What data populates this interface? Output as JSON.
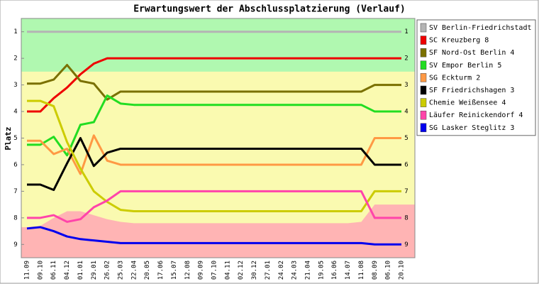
{
  "chart_data": {
    "type": "line",
    "title": "Erwartungswert der Abschlussplatzierung (Verlauf)",
    "y_label": "Platz",
    "categories": [
      "11.09",
      "09.10",
      "06.11",
      "04.12",
      "01.01",
      "29.01",
      "26.02",
      "25.03",
      "22.04",
      "20.05",
      "17.06",
      "15.07",
      "12.08",
      "09.09",
      "07.10",
      "04.11",
      "02.12",
      "30.12",
      "27.01",
      "24.02",
      "24.03",
      "21.04",
      "19.05",
      "16.06",
      "14.07",
      "11.08",
      "08.09",
      "06.10",
      "20.10"
    ],
    "ylim": [
      9.5,
      0.5
    ],
    "yticks": [
      1,
      2,
      3,
      4,
      5,
      6,
      7,
      8,
      9
    ],
    "legend": "right",
    "zones": {
      "promotion_color": "#b0f8b0",
      "middle_color": "#fafab0",
      "relegation_color": "#ffb4b4",
      "promotion_edge": 2.5,
      "relegation_edge": [
        8.35,
        8.3,
        8.0,
        7.75,
        7.75,
        7.9,
        8.05,
        8.15,
        8.2,
        8.2,
        8.2,
        8.2,
        8.2,
        8.2,
        8.2,
        8.2,
        8.2,
        8.2,
        8.2,
        8.2,
        8.2,
        8.2,
        8.2,
        8.2,
        8.2,
        8.15,
        7.5,
        7.5,
        7.5
      ]
    },
    "series": [
      {
        "name": "SV Berlin-Friedrichstadt",
        "color": "#b4b4b4",
        "values": [
          1,
          1,
          1,
          1,
          1,
          1,
          1,
          1,
          1,
          1,
          1,
          1,
          1,
          1,
          1,
          1,
          1,
          1,
          1,
          1,
          1,
          1,
          1,
          1,
          1,
          1,
          1,
          1,
          1
        ]
      },
      {
        "name": "SC Kreuzberg 8",
        "color": "#ee0000",
        "values": [
          4.0,
          4.0,
          3.5,
          3.1,
          2.6,
          2.2,
          2,
          2,
          2,
          2,
          2,
          2,
          2,
          2,
          2,
          2,
          2,
          2,
          2,
          2,
          2,
          2,
          2,
          2,
          2,
          2,
          2,
          2,
          2
        ]
      },
      {
        "name": "SF Nord-Ost Berlin 4",
        "color": "#7a7000",
        "values": [
          2.95,
          2.95,
          2.8,
          2.25,
          2.85,
          2.95,
          3.55,
          3.25,
          3.25,
          3.25,
          3.25,
          3.25,
          3.25,
          3.25,
          3.25,
          3.25,
          3.25,
          3.25,
          3.25,
          3.25,
          3.25,
          3.25,
          3.25,
          3.25,
          3.25,
          3.25,
          3.0,
          3.0,
          3.0
        ]
      },
      {
        "name": "SV Empor Berlin 5",
        "color": "#22dd22",
        "values": [
          5.25,
          5.25,
          4.95,
          5.65,
          4.5,
          4.4,
          3.4,
          3.7,
          3.75,
          3.75,
          3.75,
          3.75,
          3.75,
          3.75,
          3.75,
          3.75,
          3.75,
          3.75,
          3.75,
          3.75,
          3.75,
          3.75,
          3.75,
          3.75,
          3.75,
          3.75,
          4.0,
          4.0,
          4.0
        ]
      },
      {
        "name": "SG Eckturm 2",
        "color": "#ff9944",
        "values": [
          5.1,
          5.1,
          5.6,
          5.4,
          6.35,
          4.9,
          5.85,
          6.0,
          6.0,
          6.0,
          6.0,
          6.0,
          6.0,
          6.0,
          6.0,
          6.0,
          6.0,
          6.0,
          6.0,
          6.0,
          6.0,
          6.0,
          6.0,
          6.0,
          6.0,
          6.0,
          5.0,
          5.0,
          5.0
        ]
      },
      {
        "name": "SF Friedrichshagen 3",
        "color": "#000000",
        "values": [
          6.75,
          6.75,
          6.95,
          5.95,
          5.0,
          6.05,
          5.55,
          5.4,
          5.4,
          5.4,
          5.4,
          5.4,
          5.4,
          5.4,
          5.4,
          5.4,
          5.4,
          5.4,
          5.4,
          5.4,
          5.4,
          5.4,
          5.4,
          5.4,
          5.4,
          5.4,
          6.0,
          6.0,
          6.0
        ]
      },
      {
        "name": "Chemie Weißensee 4",
        "color": "#cccc00",
        "values": [
          3.6,
          3.6,
          3.8,
          5.15,
          6.15,
          7.0,
          7.4,
          7.7,
          7.75,
          7.75,
          7.75,
          7.75,
          7.75,
          7.75,
          7.75,
          7.75,
          7.75,
          7.75,
          7.75,
          7.75,
          7.75,
          7.75,
          7.75,
          7.75,
          7.75,
          7.75,
          7.0,
          7.0,
          7.0
        ]
      },
      {
        "name": "Läufer Reinickendorf 4",
        "color": "#ff44aa",
        "values": [
          8.0,
          8.0,
          7.9,
          8.15,
          8.05,
          7.6,
          7.35,
          7.0,
          7.0,
          7.0,
          7.0,
          7.0,
          7.0,
          7.0,
          7.0,
          7.0,
          7.0,
          7.0,
          7.0,
          7.0,
          7.0,
          7.0,
          7.0,
          7.0,
          7.0,
          7.0,
          8.0,
          8.0,
          8.0
        ]
      },
      {
        "name": "SG Lasker Steglitz 3",
        "color": "#0000ee",
        "values": [
          8.4,
          8.35,
          8.5,
          8.7,
          8.8,
          8.85,
          8.9,
          8.95,
          8.95,
          8.95,
          8.95,
          8.95,
          8.95,
          8.95,
          8.95,
          8.95,
          8.95,
          8.95,
          8.95,
          8.95,
          8.95,
          8.95,
          8.95,
          8.95,
          8.95,
          8.95,
          9.0,
          9.0,
          9.0
        ]
      }
    ]
  }
}
